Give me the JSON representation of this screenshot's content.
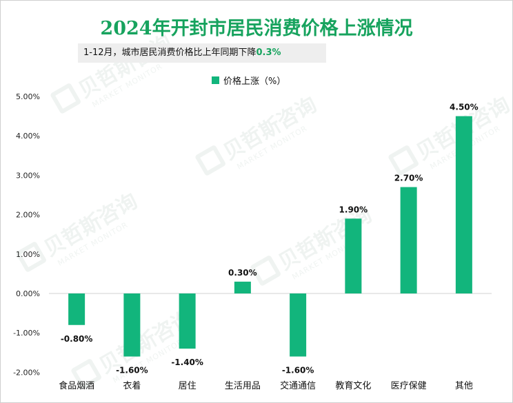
{
  "title": "2024年开封市居民消费价格上涨情况",
  "subtitle": {
    "text": "1-12月，城市居民消费价格比上年同期下降",
    "highlight": "0.3%"
  },
  "watermark": {
    "cn": "贝哲斯咨询",
    "en": "MARKET MONITOR"
  },
  "colors": {
    "accent": "#17a35e",
    "bar": "#12b57c",
    "subtitle_bg": "#eeeeee",
    "watermark_icon": "wm-logo-icon"
  },
  "chart_data": {
    "type": "bar",
    "categories": [
      "食品烟酒",
      "衣着",
      "居住",
      "生活用品",
      "交通通信",
      "教育文化",
      "医疗保健",
      "其他"
    ],
    "series": [
      {
        "name": "价格上涨（%）",
        "values": [
          -0.8,
          -1.6,
          -1.4,
          0.3,
          -1.6,
          1.9,
          2.7,
          4.5
        ],
        "value_labels": [
          "-0.80%",
          "-1.60%",
          "-1.40%",
          "0.30%",
          "-1.60%",
          "1.90%",
          "2.70%",
          "4.50%"
        ]
      }
    ],
    "ylim": [
      -2,
      5
    ],
    "yticks": [
      5,
      4,
      3,
      2,
      1,
      0,
      -1,
      -2
    ],
    "ytick_labels": [
      "5.00%",
      "4.00%",
      "3.00%",
      "2.00%",
      "1.00%",
      "0.00%",
      "-1.00%",
      "-2.00%"
    ],
    "legend_position": "top-center",
    "grid": false
  }
}
